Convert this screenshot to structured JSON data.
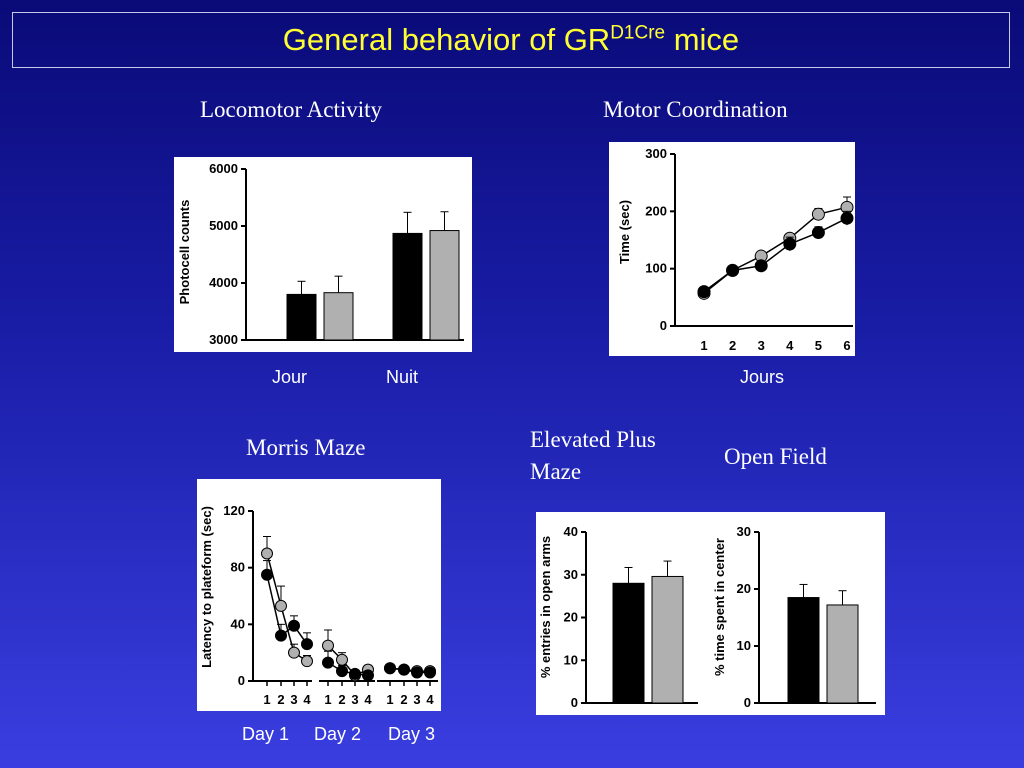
{
  "title": {
    "main": "General behavior of GR",
    "sup": "D1Cre",
    "tail": " mice"
  },
  "sections": {
    "locomotor": "Locomotor Activity",
    "motor": "Motor Coordination",
    "morris": "Morris Maze",
    "epm": "Elevated Plus Maze",
    "open_field": "Open Field"
  },
  "categories_below": {
    "jour": "Jour",
    "nuit": "Nuit",
    "jours": "Jours",
    "day1": "Day 1",
    "day2": "Day 2",
    "day3": "Day 3"
  },
  "colors": {
    "control": "#000000",
    "mutant": "#b0b0b0"
  },
  "chart_data": [
    {
      "id": "locomotor",
      "type": "bar",
      "ylabel": "Photocell counts",
      "ylim": [
        3000,
        6000
      ],
      "yticks": [
        "3000",
        "4000",
        "5000",
        "6000"
      ],
      "categories": [
        "Jour",
        "Nuit"
      ],
      "series": [
        {
          "values": [
            3800,
            4870
          ],
          "errors": [
            230,
            370
          ]
        },
        {
          "values": [
            3830,
            4920
          ],
          "errors": [
            290,
            330
          ]
        }
      ]
    },
    {
      "id": "motor",
      "type": "line",
      "ylabel": "Time (sec)",
      "xlabel": "Jours",
      "ylim": [
        0,
        300
      ],
      "yticks": [
        "0",
        "100",
        "200",
        "300"
      ],
      "x": [
        "1",
        "2",
        "3",
        "4",
        "5",
        "6"
      ],
      "series": [
        {
          "values": [
            60,
            97,
            105,
            143,
            163,
            188
          ],
          "errors": [
            5,
            5,
            8,
            12,
            10,
            12
          ]
        },
        {
          "values": [
            57,
            97,
            122,
            153,
            195,
            207
          ],
          "errors": [
            5,
            5,
            7,
            8,
            10,
            18
          ]
        }
      ]
    },
    {
      "id": "morris",
      "type": "line",
      "ylabel": "Latency to plateform (sec)",
      "ylim": [
        0,
        120
      ],
      "yticks": [
        "0",
        "40",
        "80",
        "120"
      ],
      "x": [
        "1",
        "2",
        "3",
        "4",
        "1",
        "2",
        "3",
        "4",
        "1",
        "2",
        "3",
        "4"
      ],
      "groups": [
        "Day 1",
        "Day 2",
        "Day 3"
      ],
      "series": [
        {
          "values": [
            75,
            32,
            39,
            26,
            13,
            7,
            5,
            4,
            9,
            8,
            6,
            6
          ],
          "errors": [
            10,
            8,
            7,
            8,
            8,
            4,
            2,
            2,
            2,
            2,
            2,
            2
          ]
        },
        {
          "values": [
            90,
            53,
            20,
            14,
            25,
            15,
            4,
            8,
            9,
            8,
            7,
            7
          ],
          "errors": [
            12,
            14,
            6,
            4,
            11,
            5,
            2,
            3,
            2,
            2,
            2,
            2
          ]
        }
      ]
    },
    {
      "id": "epm",
      "type": "bar",
      "ylabel": "% entries in open arms",
      "ylim": [
        0,
        40
      ],
      "yticks": [
        "0",
        "10",
        "20",
        "30",
        "40"
      ],
      "series": [
        {
          "values": [
            28
          ],
          "errors": [
            3.7
          ]
        },
        {
          "values": [
            29.6
          ],
          "errors": [
            3.6
          ]
        }
      ]
    },
    {
      "id": "open_field",
      "type": "bar",
      "ylabel": "% time spent in center",
      "ylim": [
        0,
        30
      ],
      "yticks": [
        "0",
        "10",
        "20",
        "30"
      ],
      "series": [
        {
          "values": [
            18.5
          ],
          "errors": [
            2.3
          ]
        },
        {
          "values": [
            17.2
          ],
          "errors": [
            2.5
          ]
        }
      ]
    }
  ]
}
